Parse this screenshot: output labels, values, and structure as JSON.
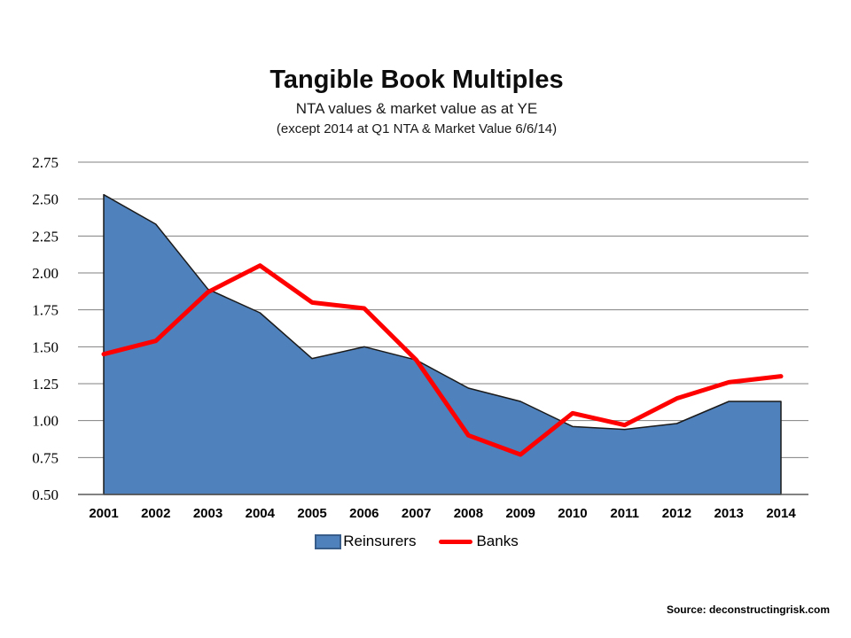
{
  "page": {
    "title": "Tangible Book Multiples",
    "subtitle": "NTA values & market value as at YE",
    "subtitle_note": "(except 2014 at Q1 NTA & Market Value 6/6/14)",
    "source": "Source: deconstructingrisk.com"
  },
  "legend": {
    "items": [
      {
        "label": "Reinsurers",
        "swatch": "area",
        "color": "#4F81BD",
        "border": "#385D8A"
      },
      {
        "label": "Banks",
        "swatch": "line",
        "color": "#FF0000"
      }
    ]
  },
  "colors": {
    "area_fill": "#4F81BD",
    "area_outline": "#1A1A1A",
    "line": "#FF0000",
    "gridline": "#808080",
    "axis": "#595959",
    "text": "#000000"
  },
  "chart_data": {
    "type": "area",
    "title": "Tangible Book Multiples",
    "subtitle": "NTA values & market value as at YE (except 2014 at Q1 NTA & Market Value 6/6/14)",
    "categories": [
      "2001",
      "2002",
      "2003",
      "2004",
      "2005",
      "2006",
      "2007",
      "2008",
      "2009",
      "2010",
      "2011",
      "2012",
      "2013",
      "2014"
    ],
    "series": [
      {
        "name": "Reinsurers",
        "type": "area",
        "color": "#4F81BD",
        "outline": "#1A1A1A",
        "values": [
          2.53,
          2.33,
          1.89,
          1.73,
          1.42,
          1.5,
          1.41,
          1.22,
          1.13,
          0.96,
          0.94,
          0.98,
          1.13,
          1.13
        ]
      },
      {
        "name": "Banks",
        "type": "line",
        "color": "#FF0000",
        "values": [
          1.45,
          1.54,
          1.87,
          2.05,
          1.8,
          1.76,
          1.41,
          0.9,
          0.77,
          1.05,
          0.97,
          1.15,
          1.26,
          1.3
        ]
      }
    ],
    "xlabel": "",
    "ylabel": "",
    "ylim": [
      0.5,
      2.75
    ],
    "ytick_step": 0.25,
    "grid": true,
    "legend_position": "bottom"
  }
}
